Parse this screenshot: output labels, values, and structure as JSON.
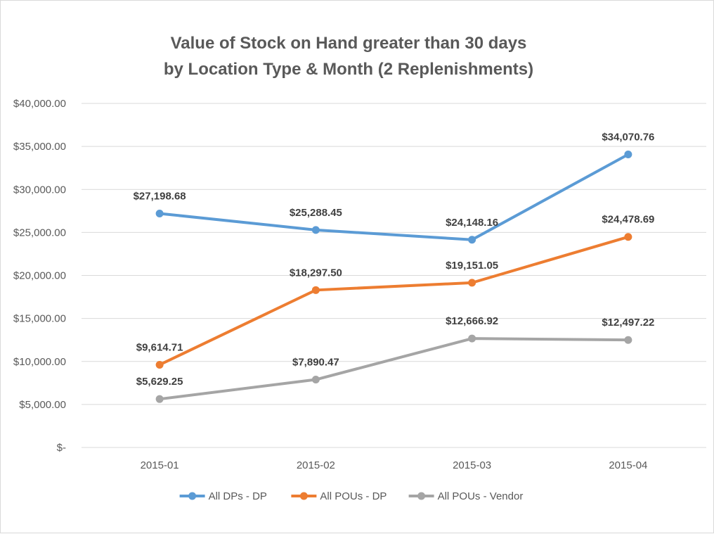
{
  "chart_data": {
    "type": "line",
    "title": [
      "Value of Stock on Hand greater than 30 days",
      "by Location Type & Month (2 Replenishments)"
    ],
    "categories": [
      "2015-01",
      "2015-02",
      "2015-03",
      "2015-04"
    ],
    "ylim": [
      0,
      40000
    ],
    "y_ticks": [
      {
        "value": 0,
        "label": "$-"
      },
      {
        "value": 5000,
        "label": "$5,000.00"
      },
      {
        "value": 10000,
        "label": "$10,000.00"
      },
      {
        "value": 15000,
        "label": "$15,000.00"
      },
      {
        "value": 20000,
        "label": "$20,000.00"
      },
      {
        "value": 25000,
        "label": "$25,000.00"
      },
      {
        "value": 30000,
        "label": "$30,000.00"
      },
      {
        "value": 35000,
        "label": "$35,000.00"
      },
      {
        "value": 40000,
        "label": "$40,000.00"
      }
    ],
    "grid": true,
    "legend_position": "bottom",
    "series": [
      {
        "name": "All DPs - DP",
        "color": "#5b9bd5",
        "values": [
          27198.68,
          25288.45,
          24148.16,
          34070.76
        ],
        "labels": [
          "$27,198.68",
          "$25,288.45",
          "$24,148.16",
          "$34,070.76"
        ]
      },
      {
        "name": "All POUs - DP",
        "color": "#ed7d31",
        "values": [
          9614.71,
          18297.5,
          19151.05,
          24478.69
        ],
        "labels": [
          "$9,614.71",
          "$18,297.50",
          "$19,151.05",
          "$24,478.69"
        ]
      },
      {
        "name": "All POUs - Vendor",
        "color": "#a5a5a5",
        "values": [
          5629.25,
          7890.47,
          12666.92,
          12497.22
        ],
        "labels": [
          "$5,629.25",
          "$7,890.47",
          "$12,666.92",
          "$12,497.22"
        ]
      }
    ]
  }
}
